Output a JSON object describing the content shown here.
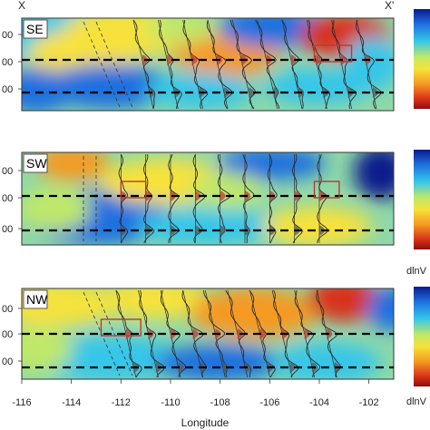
{
  "chart_data": {
    "type": "heatmap",
    "xlabel": "Longitude",
    "x_ticks": [
      -116,
      -114,
      -112,
      -110,
      -108,
      -106,
      -104,
      -102
    ],
    "xlim": [
      -116,
      -101
    ],
    "profile_endpoints": [
      "X",
      "X'"
    ],
    "colorbar_label": "dlnV",
    "panels": [
      {
        "name": "SE",
        "y_tick_labels": [
          "00",
          "00",
          "00"
        ],
        "dashed_lines": 2,
        "wiggle_longitudes": [
          -111.5,
          -110.5,
          -109.5,
          -108.5,
          -107.5,
          -106.5,
          -105.5,
          -104.5,
          -103.5,
          -102.5
        ],
        "boxes": [
          {
            "x0": -104.2,
            "x1": -102.7
          }
        ]
      },
      {
        "name": "SW",
        "y_tick_labels": [
          "00",
          "00",
          "00"
        ],
        "dashed_lines": 2,
        "wiggle_longitudes": [
          -112.0,
          -111.0,
          -110.0,
          -109.0,
          -108.0,
          -107.0,
          -106.0,
          -105.0,
          -104.0
        ],
        "boxes": [
          {
            "x0": -112.0,
            "x1": -111.0
          },
          {
            "x0": -104.2,
            "x1": -103.2
          }
        ]
      },
      {
        "name": "NW",
        "y_tick_labels": [
          "00",
          "00",
          "00"
        ],
        "dashed_lines": 2,
        "wiggle_longitudes": [
          -112.2,
          -111.3,
          -110.4,
          -109.5,
          -108.6,
          -107.7,
          -106.8,
          -105.9,
          -105.0,
          -104.1
        ],
        "boxes": [
          {
            "x0": -112.8,
            "x1": -111.2
          }
        ]
      }
    ],
    "colormap": [
      "#0a1a8c",
      "#1f6fe0",
      "#34c6ea",
      "#bfe86a",
      "#f7e23a",
      "#f59a22",
      "#d8321a",
      "#8e0f0f"
    ]
  }
}
